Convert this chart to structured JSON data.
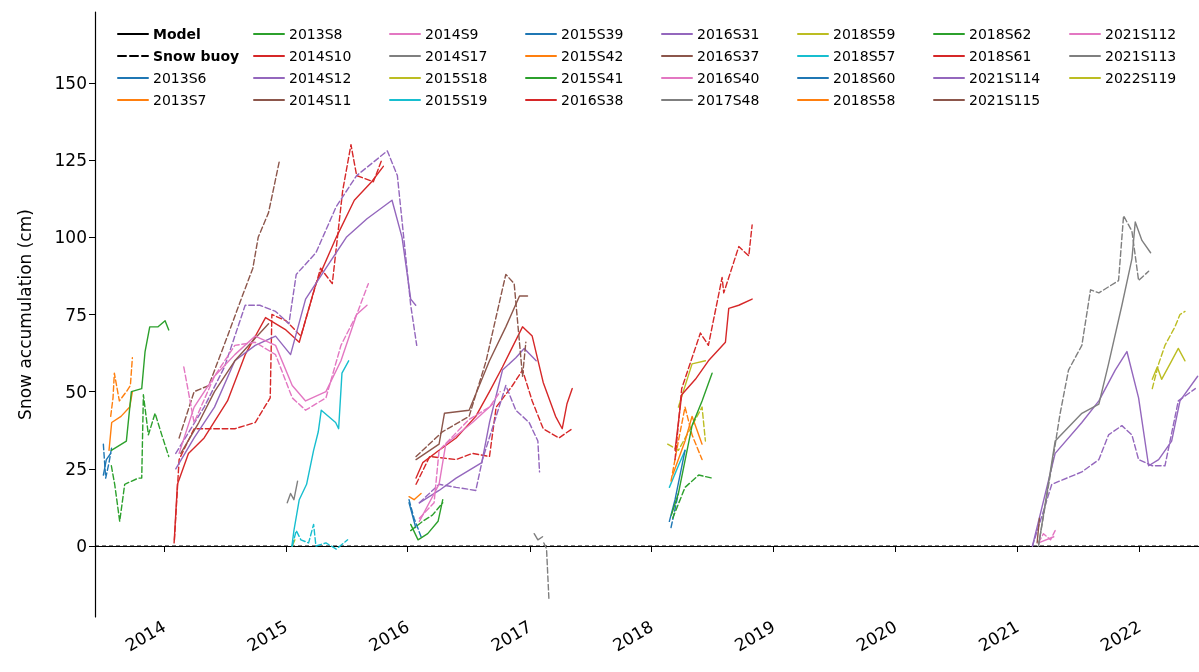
{
  "chart_data": {
    "type": "line",
    "ylabel": "Snow accumulation (cm)",
    "xlim": [
      "2013-06-08",
      "2022-06-29"
    ],
    "xticks": [
      "2014",
      "2015",
      "2016",
      "2017",
      "2018",
      "2019",
      "2020",
      "2021",
      "2022"
    ],
    "ylim": [
      -23,
      173
    ],
    "yticks": [
      0,
      25,
      50,
      75,
      100,
      125,
      150
    ],
    "grid": false,
    "legend": "top",
    "ref_lines": [
      {
        "axis": "y",
        "value": 0,
        "color": "#000000",
        "line_style": "dashed"
      }
    ],
    "series": [
      {
        "name": "Model",
        "color": "#000000",
        "line_style": "solid"
      },
      {
        "name": "Snow buoy",
        "color": "#000000",
        "line_style": "dashed"
      },
      {
        "name": "2013S6",
        "color": "#1f77b4",
        "line_style": "solid",
        "x": [
          "2013-07-03",
          "2013-07-12",
          "2013-07-25"
        ],
        "values": [
          23,
          28,
          30
        ]
      },
      {
        "color": "#1f77b4",
        "line_style": "dashed",
        "x": [
          "2013-07-03",
          "2013-07-10",
          "2013-07-20",
          "2013-07-28"
        ],
        "values": [
          33,
          22,
          27,
          32
        ]
      },
      {
        "name": "2013S7",
        "color": "#ff7f0e",
        "line_style": "solid",
        "x": [
          "2013-07-20",
          "2013-07-28",
          "2013-08-25",
          "2013-09-20",
          "2013-09-28"
        ],
        "values": [
          31,
          40,
          42,
          45,
          50
        ]
      },
      {
        "color": "#ff7f0e",
        "line_style": "dashed",
        "x": [
          "2013-07-25",
          "2013-08-01",
          "2013-08-05",
          "2013-08-20",
          "2013-09-10",
          "2013-09-22",
          "2013-09-28"
        ],
        "values": [
          42,
          48,
          56,
          47,
          50,
          52,
          61
        ]
      },
      {
        "name": "2013S8",
        "color": "#2ca02c",
        "line_style": "solid",
        "x": [
          "2013-07-27",
          "2013-09-10",
          "2013-09-25",
          "2013-10-26",
          "2013-11-05",
          "2013-11-19",
          "2013-12-14",
          "2014-01-04",
          "2014-01-15"
        ],
        "values": [
          31,
          34,
          50,
          51,
          63,
          71,
          71,
          73,
          70
        ]
      },
      {
        "color": "#2ca02c",
        "line_style": "dashed",
        "x": [
          "2013-07-27",
          "2013-08-06",
          "2013-08-21",
          "2013-09-05",
          "2013-10-16",
          "2013-10-26",
          "2013-10-31",
          "2013-11-15",
          "2013-12-05",
          "2013-12-25",
          "2014-01-15"
        ],
        "values": [
          26,
          20,
          8,
          20,
          22,
          22,
          49,
          36,
          43,
          36,
          29
        ]
      },
      {
        "name": "2014S10",
        "color": "#d62728",
        "line_style": "solid",
        "x": [
          "2014-01-31",
          "2014-02-10",
          "2014-03-15",
          "2014-05-01",
          "2014-07-10",
          "2014-09-01",
          "2014-11-01",
          "2015-01-01",
          "2015-02-10",
          "2015-04-01",
          "2015-06-01",
          "2015-07-25",
          "2015-09-15",
          "2015-10-20"
        ],
        "values": [
          1,
          20,
          30,
          35,
          47,
          62,
          74,
          70,
          66,
          85,
          100,
          112,
          118,
          123
        ]
      },
      {
        "color": "#d62728",
        "line_style": "dashed",
        "x": [
          "2014-02-01",
          "2014-02-15",
          "2014-04-01",
          "2014-06-01",
          "2014-08-01",
          "2014-10-01",
          "2014-11-15",
          "2014-11-20",
          "2015-01-01",
          "2015-02-15",
          "2015-04-15",
          "2015-05-20",
          "2015-06-20",
          "2015-07-15",
          "2015-08-01",
          "2015-09-20",
          "2015-10-15"
        ],
        "values": [
          2,
          28,
          38,
          38,
          38,
          40,
          48,
          75,
          73,
          68,
          90,
          85,
          115,
          130,
          120,
          118,
          125
        ]
      },
      {
        "name": "2014S12",
        "color": "#9467bd",
        "line_style": "solid",
        "x": [
          "2014-02-05",
          "2014-04-01",
          "2014-06-01",
          "2014-08-01",
          "2014-10-01",
          "2014-12-01",
          "2015-01-15",
          "2015-03-01",
          "2015-05-01",
          "2015-07-01",
          "2015-09-01",
          "2015-11-15",
          "2015-12-15",
          "2016-01-10",
          "2016-01-25"
        ],
        "values": [
          25,
          35,
          45,
          60,
          65,
          68,
          62,
          80,
          90,
          100,
          106,
          112,
          100,
          80,
          78
        ]
      },
      {
        "color": "#9467bd",
        "line_style": "dashed",
        "x": [
          "2014-02-05",
          "2014-05-01",
          "2014-07-01",
          "2014-09-01",
          "2014-10-15",
          "2014-12-01",
          "2015-01-10",
          "2015-02-01",
          "2015-04-01",
          "2015-06-01",
          "2015-08-01",
          "2015-11-01",
          "2015-12-01",
          "2016-01-10",
          "2016-01-28"
        ],
        "values": [
          30,
          45,
          58,
          78,
          78,
          76,
          72,
          88,
          95,
          110,
          120,
          128,
          120,
          78,
          65
        ]
      },
      {
        "name": "2014S11",
        "color": "#8c564b",
        "line_style": "solid",
        "x": [
          "2014-02-20",
          "2014-04-15",
          "2014-06-01",
          "2014-08-01",
          "2014-09-20",
          "2014-11-10"
        ],
        "values": [
          30,
          40,
          50,
          60,
          66,
          72
        ]
      },
      {
        "color": "#8c564b",
        "line_style": "dashed",
        "x": [
          "2014-02-15",
          "2014-04-01",
          "2014-05-15",
          "2014-07-10",
          "2014-08-20",
          "2014-09-24",
          "2014-10-10",
          "2014-11-10",
          "2014-12-13"
        ],
        "values": [
          35,
          50,
          52,
          68,
          80,
          90,
          100,
          108,
          125
        ]
      },
      {
        "name": "2014S9",
        "color": "#e377c2",
        "line_style": "solid",
        "x": [
          "2014-02-15",
          "2014-04-01",
          "2014-06-01",
          "2014-08-01",
          "2014-10-01",
          "2014-12-01",
          "2015-01-20",
          "2015-03-01",
          "2015-05-01",
          "2015-06-15",
          "2015-08-01",
          "2015-09-01"
        ],
        "values": [
          30,
          45,
          55,
          62,
          68,
          65,
          52,
          47,
          50,
          60,
          75,
          78
        ]
      },
      {
        "color": "#e377c2",
        "line_style": "dashed",
        "x": [
          "2014-03-01",
          "2014-04-01",
          "2014-06-01",
          "2014-08-01",
          "2014-10-01",
          "2014-12-01",
          "2015-01-20",
          "2015-03-01",
          "2015-05-01",
          "2015-06-15",
          "2015-08-01",
          "2015-09-05"
        ],
        "values": [
          58,
          40,
          55,
          65,
          66,
          62,
          48,
          44,
          48,
          65,
          75,
          85
        ]
      },
      {
        "name": "2014S17",
        "color": "#7f7f7f",
        "line_style": "solid",
        "x": [
          "2015-01-05",
          "2015-01-15",
          "2015-01-25",
          "2015-02-05"
        ],
        "values": [
          14,
          17,
          15,
          21
        ]
      },
      {
        "name": "2015S18",
        "color": "#bcbd22",
        "line_style": "solid",
        "x": [
          "2015-01-20",
          "2015-01-28"
        ],
        "values": [
          0,
          2
        ]
      },
      {
        "name": "2015S19",
        "color": "#17becf",
        "line_style": "solid",
        "x": [
          "2015-01-19",
          "2015-01-25",
          "2015-02-10",
          "2015-03-04",
          "2015-03-25",
          "2015-04-08",
          "2015-04-17",
          "2015-05-30",
          "2015-06-08",
          "2015-06-18",
          "2015-07-08"
        ],
        "values": [
          0,
          5,
          15,
          20,
          31,
          37,
          44,
          40,
          38,
          56,
          60
        ]
      },
      {
        "color": "#17becf",
        "line_style": "dashed",
        "x": [
          "2015-01-20",
          "2015-02-01",
          "2015-02-15",
          "2015-03-10",
          "2015-03-25",
          "2015-04-01",
          "2015-05-01",
          "2015-06-01",
          "2015-07-05"
        ],
        "values": [
          0,
          5,
          2,
          1,
          7,
          0,
          1,
          -1,
          2
        ]
      },
      {
        "name": "2015S39",
        "color": "#1f77b4",
        "line_style": "solid",
        "x": [
          "2016-01-05",
          "2016-01-15",
          "2016-01-25"
        ],
        "values": [
          14,
          10,
          6
        ]
      },
      {
        "color": "#1f77b4",
        "line_style": "dashed",
        "x": [
          "2016-01-05",
          "2016-01-20",
          "2016-02-10"
        ],
        "values": [
          15,
          9,
          3
        ]
      },
      {
        "name": "2015S42",
        "color": "#ff7f0e",
        "line_style": "solid",
        "x": [
          "2016-01-05",
          "2016-01-20",
          "2016-02-10"
        ],
        "values": [
          16,
          15,
          17
        ]
      },
      {
        "name": "2015S41",
        "color": "#2ca02c",
        "line_style": "solid",
        "x": [
          "2016-01-10",
          "2016-02-01",
          "2016-03-01",
          "2016-04-01",
          "2016-04-15"
        ],
        "values": [
          7,
          2,
          4,
          8,
          15
        ]
      },
      {
        "color": "#2ca02c",
        "line_style": "dashed",
        "x": [
          "2016-01-10",
          "2016-02-15",
          "2016-03-15",
          "2016-04-15"
        ],
        "values": [
          5,
          8,
          10,
          14
        ]
      },
      {
        "name": "2016S38",
        "color": "#d62728",
        "line_style": "solid",
        "x": [
          "2016-01-26",
          "2016-02-15",
          "2016-04-04",
          "2016-05-25",
          "2016-07-23",
          "2016-09-02",
          "2016-10-11",
          "2016-12-10",
          "2017-01-08",
          "2017-02-10",
          "2017-03-19",
          "2017-04-08",
          "2017-04-22",
          "2017-05-08"
        ],
        "values": [
          22,
          27,
          31,
          35,
          42,
          50,
          58,
          71,
          68,
          53,
          42,
          38,
          46,
          51
        ]
      },
      {
        "color": "#d62728",
        "line_style": "dashed",
        "x": [
          "2016-01-26",
          "2016-03-07",
          "2016-05-25",
          "2016-07-13",
          "2016-09-02",
          "2016-09-22",
          "2016-11-10",
          "2016-12-10",
          "2017-01-08",
          "2017-02-10",
          "2017-03-29",
          "2017-05-08"
        ],
        "values": [
          20,
          29,
          28,
          30,
          29,
          45,
          52,
          57,
          47,
          38,
          35,
          38
        ]
      },
      {
        "name": "2016S31",
        "color": "#9467bd",
        "line_style": "solid",
        "x": [
          "2016-02-05",
          "2016-04-04",
          "2016-05-25",
          "2016-08-10",
          "2016-09-02",
          "2016-10-11",
          "2016-11-20",
          "2016-12-15",
          "2017-01-20"
        ],
        "values": [
          14,
          18,
          22,
          27,
          40,
          57,
          61,
          64,
          60
        ]
      },
      {
        "color": "#9467bd",
        "line_style": "dashed",
        "x": [
          "2016-02-05",
          "2016-04-04",
          "2016-05-25",
          "2016-07-23",
          "2016-08-12",
          "2016-09-22",
          "2016-10-21",
          "2016-11-20",
          "2016-12-30",
          "2017-01-25",
          "2017-01-30"
        ],
        "values": [
          14,
          20,
          19,
          18,
          28,
          42,
          52,
          44,
          40,
          34,
          24
        ]
      },
      {
        "name": "2016S37",
        "color": "#8c564b",
        "line_style": "solid",
        "x": [
          "2016-01-26",
          "2016-04-04",
          "2016-04-20",
          "2016-07-03",
          "2016-09-02",
          "2016-10-21",
          "2016-12-01",
          "2016-12-25"
        ],
        "values": [
          28,
          33,
          43,
          44,
          60,
          71,
          81,
          81
        ]
      },
      {
        "color": "#8c564b",
        "line_style": "dashed",
        "x": [
          "2016-01-26",
          "2016-04-14",
          "2016-07-03",
          "2016-08-23",
          "2016-10-04",
          "2016-10-21",
          "2016-11-15",
          "2016-12-10",
          "2016-12-20"
        ],
        "values": [
          29,
          37,
          42,
          60,
          80,
          88,
          85,
          55,
          66
        ]
      },
      {
        "name": "2016S40",
        "color": "#e377c2",
        "line_style": "solid",
        "x": [
          "2016-02-05",
          "2016-04-04",
          "2016-04-24",
          "2016-07-13",
          "2016-09-12"
        ],
        "values": [
          8,
          20,
          33,
          40,
          46
        ]
      },
      {
        "color": "#e377c2",
        "line_style": "dashed",
        "x": [
          "2016-02-05",
          "2016-03-20",
          "2016-04-04",
          "2016-07-03",
          "2016-09-02",
          "2016-10-04"
        ],
        "values": [
          9,
          14,
          31,
          41,
          45,
          50
        ]
      },
      {
        "name": "2017S48",
        "color": "#7f7f7f",
        "line_style": "solid",
        "x": [
          "2017-01-14",
          "2017-01-25",
          "2017-02-08"
        ],
        "values": [
          4,
          2,
          3
        ]
      },
      {
        "color": "#7f7f7f",
        "line_style": "dashed",
        "x": [
          "2017-02-12",
          "2017-02-20",
          "2017-02-27"
        ],
        "values": [
          1,
          -1,
          -17
        ]
      },
      {
        "name": "2018S59",
        "color": "#bcbd22",
        "line_style": "solid",
        "x": [
          "2018-03-22",
          "2018-05-02",
          "2018-06-11"
        ],
        "values": [
          45,
          59,
          60
        ]
      },
      {
        "color": "#bcbd22",
        "line_style": "dashed",
        "x": [
          "2018-02-18",
          "2018-03-22",
          "2018-05-02",
          "2018-06-01",
          "2018-06-11"
        ],
        "values": [
          33,
          31,
          39,
          45,
          34
        ]
      },
      {
        "name": "2018S57",
        "color": "#17becf",
        "line_style": "solid",
        "x": [
          "2018-02-23",
          "2018-03-22",
          "2018-04-11"
        ],
        "values": [
          19,
          26,
          31
        ]
      },
      {
        "name": "2018S60",
        "color": "#1f77b4",
        "line_style": "solid",
        "x": [
          "2018-02-23",
          "2018-03-12",
          "2018-04-11"
        ],
        "values": [
          8,
          15,
          31
        ]
      },
      {
        "color": "#1f77b4",
        "line_style": "dashed",
        "x": [
          "2018-02-28",
          "2018-03-22"
        ],
        "values": [
          6,
          17
        ]
      },
      {
        "name": "2018S58",
        "color": "#ff7f0e",
        "line_style": "solid",
        "x": [
          "2018-03-05",
          "2018-04-11",
          "2018-05-02",
          "2018-06-01"
        ],
        "values": [
          23,
          34,
          42,
          33
        ]
      },
      {
        "color": "#ff7f0e",
        "line_style": "dashed",
        "x": [
          "2018-02-28",
          "2018-03-22",
          "2018-04-11",
          "2018-05-02",
          "2018-06-01"
        ],
        "values": [
          21,
          34,
          45,
          36,
          28
        ]
      },
      {
        "name": "2018S62",
        "color": "#2ca02c",
        "line_style": "solid",
        "x": [
          "2018-03-01",
          "2018-03-22",
          "2018-05-02",
          "2018-06-01",
          "2018-07-01"
        ],
        "values": [
          10,
          17,
          39,
          47,
          56
        ]
      },
      {
        "color": "#2ca02c",
        "line_style": "dashed",
        "x": [
          "2018-03-05",
          "2018-04-11",
          "2018-05-22",
          "2018-07-01"
        ],
        "values": [
          9,
          19,
          23,
          22
        ]
      },
      {
        "name": "2018S61",
        "color": "#d62728",
        "line_style": "solid",
        "x": [
          "2018-03-12",
          "2018-04-01",
          "2018-05-12",
          "2018-06-20",
          "2018-08-10",
          "2018-08-20",
          "2018-09-19",
          "2018-10-29"
        ],
        "values": [
          31,
          49,
          54,
          60,
          66,
          77,
          78,
          80
        ]
      },
      {
        "color": "#d62728",
        "line_style": "dashed",
        "x": [
          "2018-03-12",
          "2018-04-01",
          "2018-05-27",
          "2018-06-20",
          "2018-07-31",
          "2018-08-05",
          "2018-09-19",
          "2018-10-19",
          "2018-10-29"
        ],
        "values": [
          28,
          51,
          69,
          65,
          87,
          82,
          97,
          94,
          104
        ]
      },
      {
        "name": "2021S114",
        "color": "#9467bd",
        "line_style": "solid",
        "x": [
          "2021-02-15",
          "2021-04-24",
          "2021-07-13",
          "2021-09-02",
          "2021-10-21",
          "2021-11-25",
          "2021-12-30",
          "2022-01-29",
          "2022-02-28",
          "2022-04-08",
          "2022-05-03",
          "2022-06-25"
        ],
        "values": [
          0,
          30,
          40,
          47,
          57,
          63,
          48,
          26,
          28,
          34,
          47,
          55
        ]
      },
      {
        "color": "#9467bd",
        "line_style": "dashed",
        "x": [
          "2021-02-15",
          "2021-04-14",
          "2021-07-13",
          "2021-09-02",
          "2021-10-01",
          "2021-11-10",
          "2021-12-10",
          "2021-12-30",
          "2022-02-09",
          "2022-03-19",
          "2022-04-28",
          "2022-06-18"
        ],
        "values": [
          0,
          20,
          24,
          28,
          36,
          39,
          36,
          28,
          26,
          26,
          47,
          51
        ]
      },
      {
        "name": "2021S115",
        "color": "#8c564b",
        "line_style": "solid",
        "x": [
          "2021-03-01",
          "2021-03-08"
        ],
        "values": [
          1,
          9
        ]
      },
      {
        "name": "2021S112",
        "color": "#e377c2",
        "line_style": "solid",
        "x": [
          "2021-03-05",
          "2021-04-20"
        ],
        "values": [
          1,
          3
        ]
      },
      {
        "color": "#e377c2",
        "line_style": "dashed",
        "x": [
          "2021-03-05",
          "2021-03-20",
          "2021-04-10",
          "2021-04-24"
        ],
        "values": [
          1,
          4,
          2,
          5
        ]
      },
      {
        "name": "2021S113",
        "color": "#7f7f7f",
        "line_style": "solid",
        "x": [
          "2021-03-05",
          "2021-04-24",
          "2021-07-13",
          "2021-09-02",
          "2021-10-01",
          "2021-11-10",
          "2021-12-10",
          "2021-12-20",
          "2022-01-09",
          "2022-02-04"
        ],
        "values": [
          0,
          34,
          43,
          46,
          59,
          78,
          93,
          105,
          99,
          95
        ]
      },
      {
        "color": "#7f7f7f",
        "line_style": "dashed",
        "x": [
          "2021-03-05",
          "2021-04-14",
          "2021-05-09",
          "2021-06-03",
          "2021-07-13",
          "2021-08-08",
          "2021-09-02",
          "2021-10-31",
          "2021-11-15",
          "2021-12-10",
          "2021-12-30",
          "2022-01-29"
        ],
        "values": [
          0,
          26,
          43,
          57,
          65,
          83,
          82,
          86,
          107,
          102,
          86,
          89
        ]
      },
      {
        "name": "2022S119",
        "color": "#bcbd22",
        "line_style": "solid",
        "x": [
          "2022-02-09",
          "2022-02-24",
          "2022-03-09",
          "2022-04-08",
          "2022-04-28",
          "2022-05-18"
        ],
        "values": [
          54,
          58,
          54,
          60,
          64,
          60
        ]
      },
      {
        "color": "#bcbd22",
        "line_style": "dashed",
        "x": [
          "2022-02-09",
          "2022-02-28",
          "2022-03-19",
          "2022-04-18",
          "2022-05-03",
          "2022-05-18"
        ],
        "values": [
          51,
          59,
          65,
          71,
          75,
          76
        ]
      }
    ]
  }
}
